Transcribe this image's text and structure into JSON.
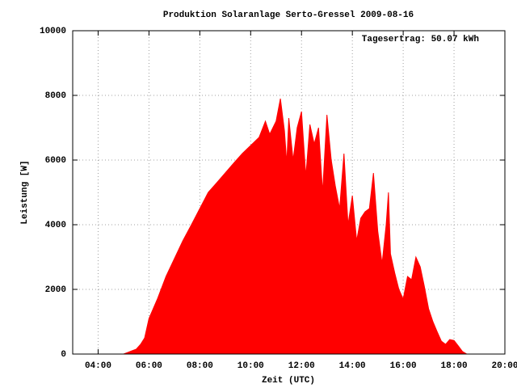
{
  "chart_data": {
    "type": "area",
    "title": "Produktion Solaranlage Serto-Gressel 2009-08-16",
    "annotation": "Tagesertrag: 50.07 kWh",
    "x_label": "Zeit (UTC)",
    "y_label": "Leistung [W]",
    "color": "#ff0000",
    "grid": true,
    "xlim": [
      3,
      20
    ],
    "ylim": [
      0,
      10000
    ],
    "xticks": [
      {
        "value": 4,
        "label": "04:00"
      },
      {
        "value": 6,
        "label": "06:00"
      },
      {
        "value": 8,
        "label": "08:00"
      },
      {
        "value": 10,
        "label": "10:00"
      },
      {
        "value": 12,
        "label": "12:00"
      },
      {
        "value": 14,
        "label": "14:00"
      },
      {
        "value": 16,
        "label": "16:00"
      },
      {
        "value": 18,
        "label": "18:00"
      },
      {
        "value": 20,
        "label": "20:00"
      }
    ],
    "yticks": [
      0,
      2000,
      4000,
      6000,
      8000,
      10000
    ],
    "x": [
      5,
      5.17,
      5.33,
      5.5,
      5.67,
      5.83,
      6,
      6.33,
      6.67,
      7,
      7.33,
      7.67,
      8,
      8.33,
      8.67,
      9,
      9.33,
      9.67,
      10,
      10.33,
      10.58,
      10.75,
      11,
      11.17,
      11.33,
      11.42,
      11.5,
      11.67,
      11.83,
      12,
      12.17,
      12.33,
      12.5,
      12.67,
      12.83,
      13,
      13.17,
      13.33,
      13.5,
      13.67,
      13.83,
      14,
      14.17,
      14.33,
      14.5,
      14.67,
      14.83,
      15,
      15.17,
      15.33,
      15.42,
      15.5,
      15.67,
      15.83,
      16,
      16.17,
      16.33,
      16.5,
      16.67,
      16.83,
      17,
      17.17,
      17.33,
      17.5,
      17.67,
      17.83,
      18,
      18.17,
      18.33,
      18.5
    ],
    "values": [
      0,
      50,
      100,
      150,
      300,
      500,
      1100,
      1700,
      2400,
      2950,
      3500,
      4000,
      4500,
      5000,
      5300,
      5600,
      5900,
      6200,
      6450,
      6700,
      7200,
      6800,
      7200,
      7900,
      6900,
      5900,
      7300,
      6000,
      7000,
      7500,
      5500,
      7100,
      6500,
      7000,
      5000,
      7400,
      6000,
      5200,
      4500,
      6200,
      4000,
      4900,
      3500,
      4200,
      4400,
      4500,
      5600,
      3800,
      2800,
      4000,
      5000,
      3100,
      2500,
      2000,
      1700,
      2400,
      2300,
      3000,
      2700,
      2100,
      1400,
      1000,
      700,
      400,
      300,
      450,
      420,
      250,
      80,
      0
    ]
  }
}
